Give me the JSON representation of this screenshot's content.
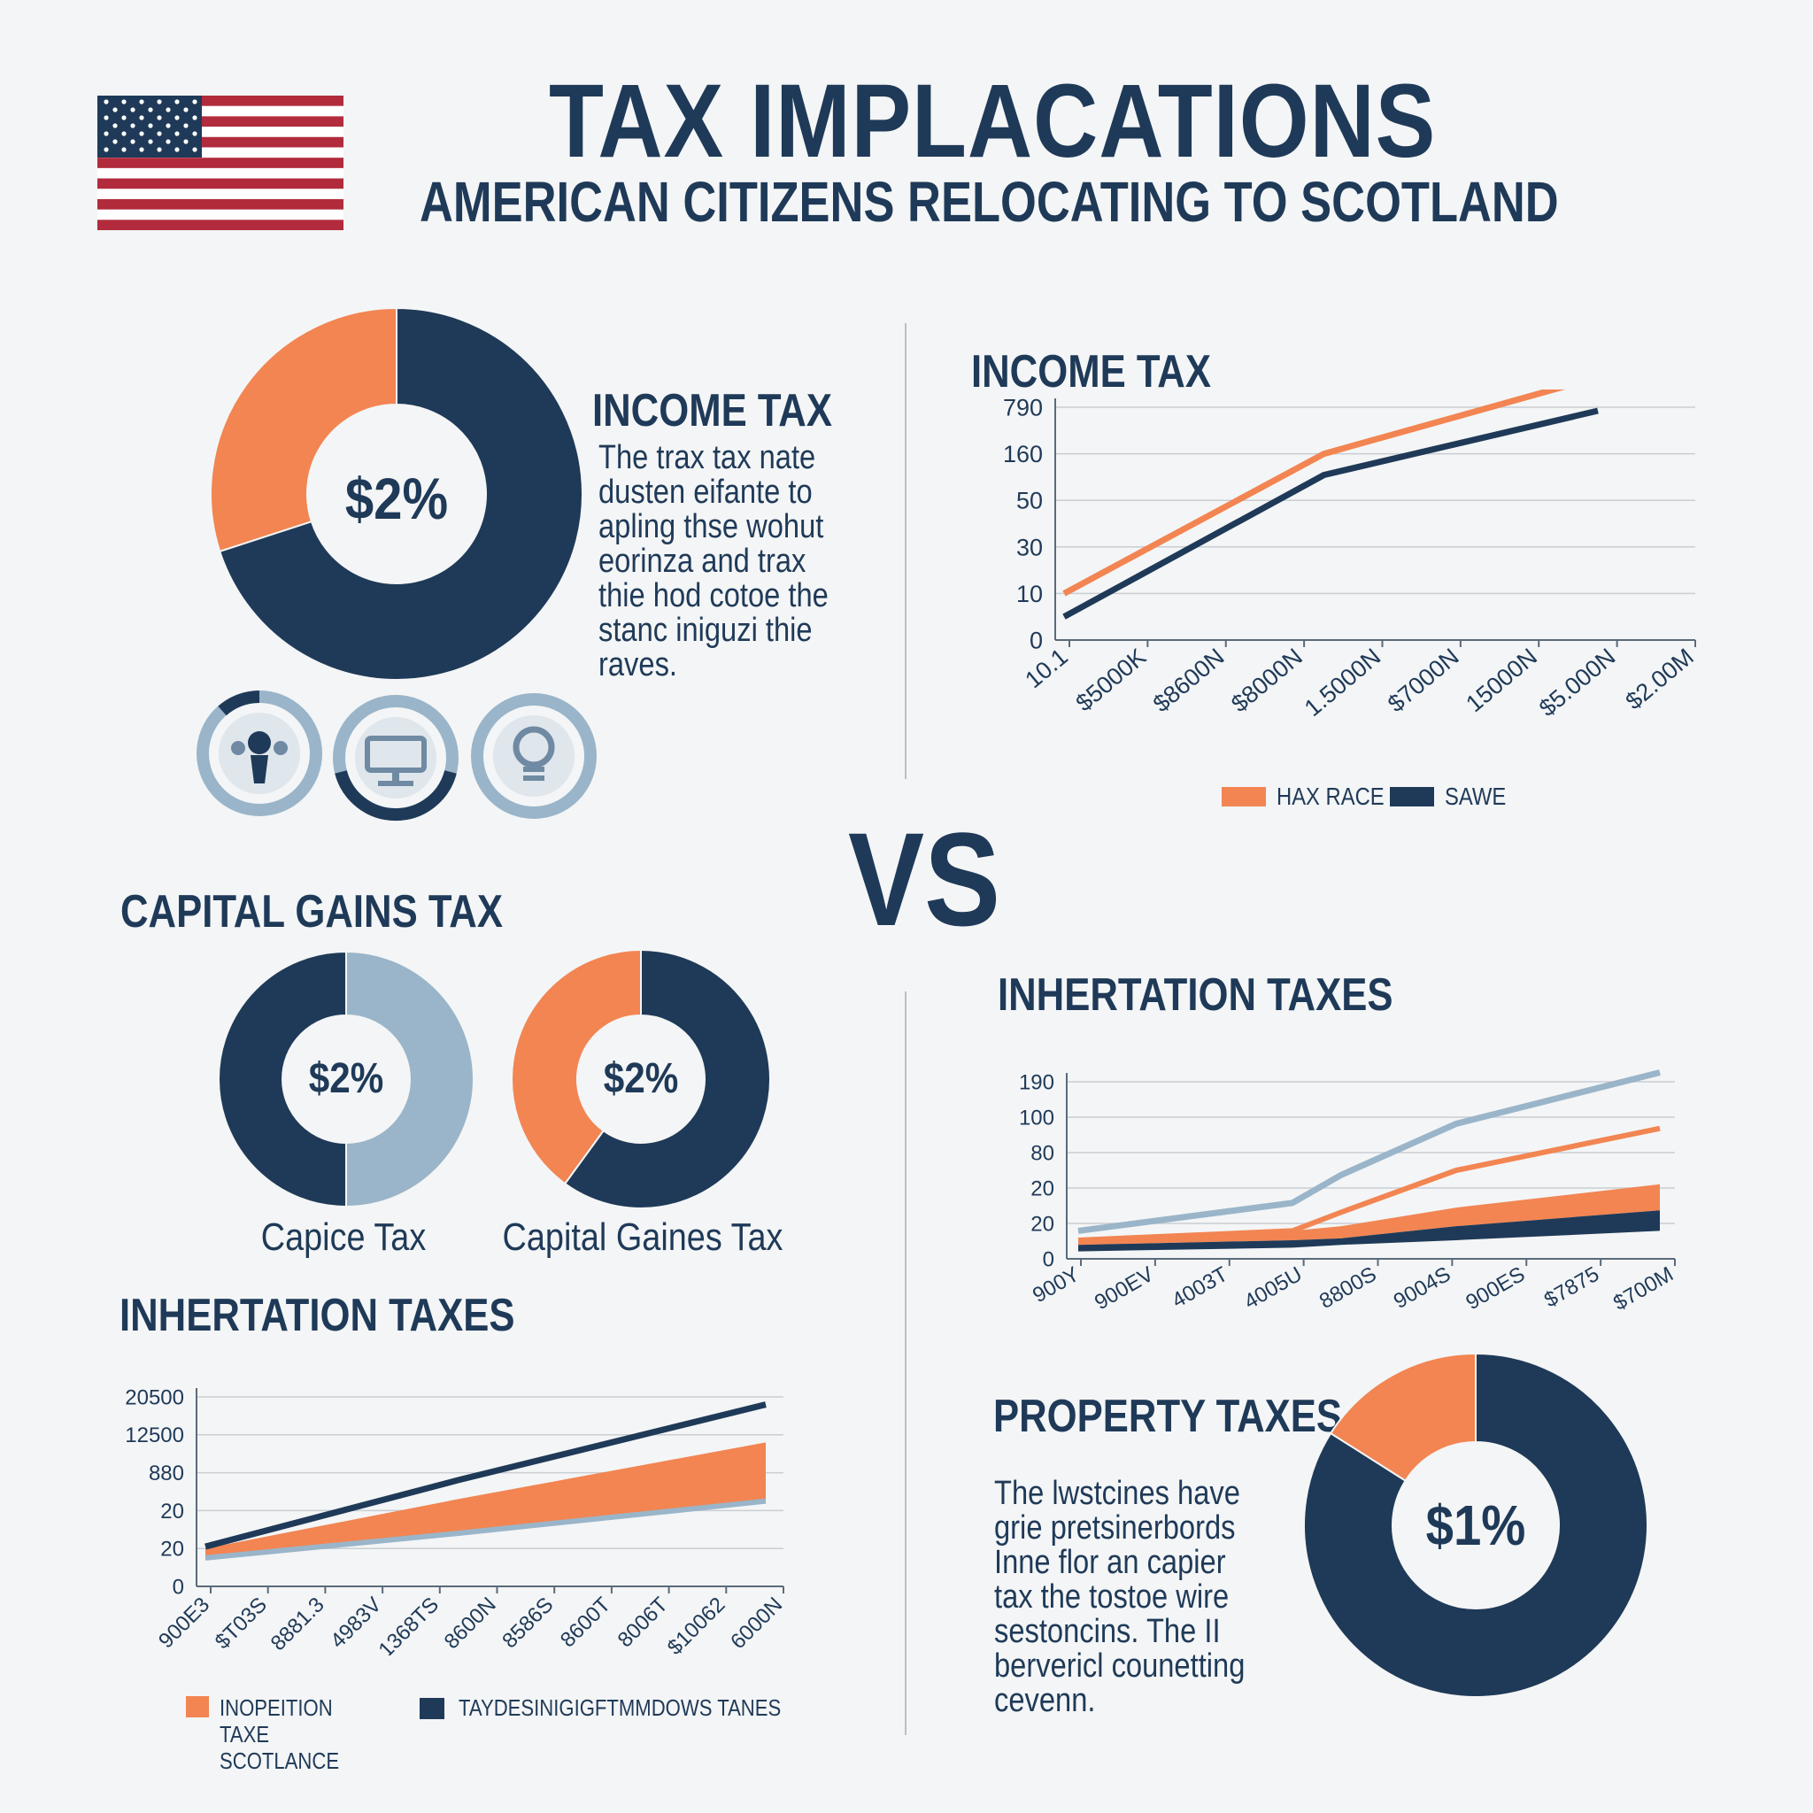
{
  "header": {
    "title": "TAX IMPLACATIONS",
    "subtitle": "AMERICAN CITIZENS RELOCATING TO SCOTLAND",
    "flag_icon": "us-flag-icon"
  },
  "colors": {
    "navy": "#1f3a58",
    "orange": "#f28552",
    "lightblue": "#9ab5c9",
    "grid": "#c9ced3"
  },
  "vs_label": "VS",
  "income_tax_left": {
    "heading": "INCOME TAX",
    "donut_label": "$2%",
    "body_lines": [
      "The trax tax nate",
      "dusten eifante to",
      "apling thse wohut",
      "eorinza and trax",
      "thie hod cotoe the",
      "stanc iniguzi thie",
      "raves."
    ],
    "icons": [
      "people-icon",
      "computer-icon",
      "lightbulb-icon"
    ]
  },
  "capital_gains": {
    "heading": "CAPITAL GAINS TAX",
    "captions": [
      "Capice Tax",
      "Capital Gaines Tax"
    ],
    "donut_labels": [
      "$2%",
      "$2%"
    ]
  },
  "inheritance_left": {
    "heading": "INHERTATION TAXES",
    "legend": [
      "INOPEITION TAXE SCOTLANCE",
      "TAYDESINIGIGFTMMDOWS TANES"
    ]
  },
  "income_tax_right": {
    "heading": "INCOME TAX",
    "legend": [
      "HAX RACE",
      "SAWE"
    ]
  },
  "inheritance_right": {
    "heading": "INHERTATION TAXES"
  },
  "property_taxes": {
    "heading": "PROPERTY TAXES",
    "donut_label": "$1%",
    "body_lines": [
      "The lwstcines have",
      "grie pretsinerbords",
      "Inne flor an capier",
      "tax the tostoe wire",
      "sestoncins. The II",
      "bervericl counetting",
      "cevenn."
    ]
  },
  "chart_data": [
    {
      "id": "income_donut",
      "type": "pie",
      "variant": "donut",
      "center_label": "$2%",
      "slices": [
        {
          "color": "orange",
          "value": 30
        },
        {
          "color": "navy",
          "value": 70
        }
      ]
    },
    {
      "id": "capital_donut_1",
      "type": "pie",
      "variant": "donut",
      "center_label": "$2%",
      "slices": [
        {
          "color": "lightblue",
          "value": 50
        },
        {
          "color": "navy",
          "value": 50
        }
      ]
    },
    {
      "id": "capital_donut_2",
      "type": "pie",
      "variant": "donut",
      "center_label": "$2%",
      "slices": [
        {
          "color": "navy",
          "value": 60
        },
        {
          "color": "orange",
          "value": 40
        }
      ]
    },
    {
      "id": "property_donut",
      "type": "pie",
      "variant": "donut",
      "center_label": "$1%",
      "slices": [
        {
          "color": "navy",
          "value": 84
        },
        {
          "color": "orange",
          "value": 16
        }
      ]
    },
    {
      "id": "income_line",
      "type": "line",
      "title": "INCOME TAX",
      "y_ticks": [
        "0",
        "10",
        "30",
        "50",
        "160",
        "790"
      ],
      "x_ticks": [
        "10.1",
        "$5000K",
        "$8600N",
        "$8000N",
        "1.5000N",
        "$7000N",
        "15000N",
        "$5.000N",
        "$2.00M"
      ],
      "legend": "bottom",
      "grid": true,
      "series": [
        {
          "name": "HAX RACE",
          "color": "orange",
          "values": [
            10,
            160,
            790
          ]
        },
        {
          "name": "SAWE",
          "color": "navy",
          "values": [
            5,
            110,
            700
          ]
        }
      ]
    },
    {
      "id": "inheritance_right_line",
      "type": "line",
      "title": "INHERTATION TAXES",
      "y_ticks": [
        "0",
        "20",
        "20",
        "80",
        "100",
        "190"
      ],
      "x_ticks": [
        "900Y",
        "900EV",
        "4003T",
        "4005U",
        "8800S",
        "9004S",
        "900ES",
        "$7875",
        "$700M"
      ],
      "grid": true,
      "series": [
        {
          "color": "lightblue",
          "values": [
            30,
            60,
            90,
            145,
            200
          ]
        },
        {
          "color": "orange",
          "values": [
            20,
            30,
            50,
            95,
            140
          ]
        },
        {
          "color": "navy",
          "values": [
            15,
            20,
            28,
            40,
            52
          ]
        }
      ]
    },
    {
      "id": "inheritance_left_line",
      "type": "line",
      "title": "INHERTATION TAXES",
      "y_ticks": [
        "0",
        "20",
        "20",
        "880",
        "12500",
        "20500"
      ],
      "x_ticks": [
        "900E3",
        "$T03S",
        "8881.3",
        "4983V",
        "1368TS",
        "8600N",
        "8586S",
        "8600T",
        "8006T",
        "$10062",
        "6000N"
      ],
      "legend": "bottom",
      "grid": true,
      "series": [
        {
          "name": "TAYDESINIGIGFTMMDOWS TANES",
          "color": "navy",
          "values": [
            20,
            500,
            12500,
            20500
          ]
        },
        {
          "name": "INOPEITION TAXE SCOTLANCE",
          "color": "orange",
          "values": [
            18,
            400,
            880,
            12500
          ]
        },
        {
          "color": "lightblue",
          "values": [
            15,
            20,
            30,
            40
          ]
        }
      ]
    }
  ]
}
